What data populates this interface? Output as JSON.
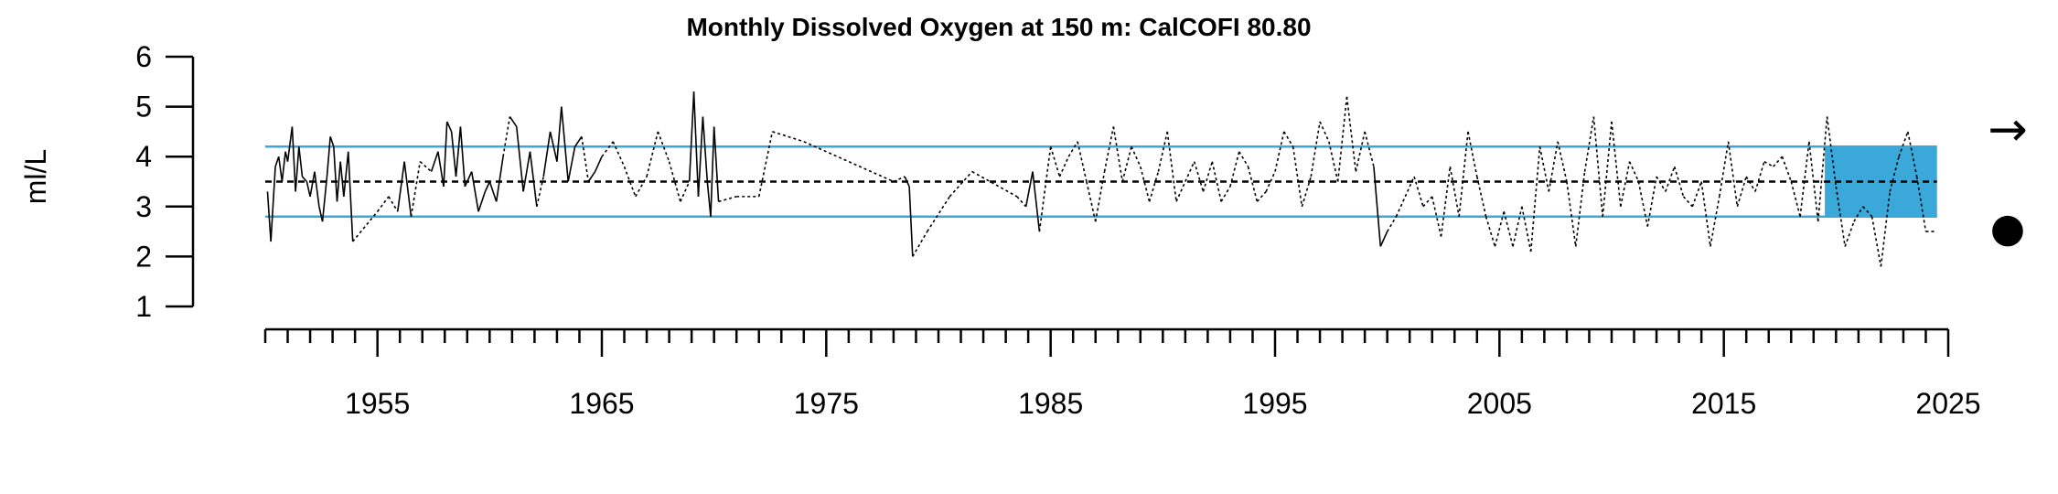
{
  "chart_data": {
    "type": "line",
    "title": "Monthly Dissolved Oxygen at 150 m: CalCOFI 80.80",
    "ylabel": "ml/L",
    "xlabel": "",
    "xlim": [
      1950,
      2025
    ],
    "ylim": [
      1,
      6
    ],
    "yticks": [
      1,
      2,
      3,
      4,
      5,
      6
    ],
    "xticks_labeled": [
      "1955",
      "1965",
      "1975",
      "1985",
      "1995",
      "2005",
      "2015",
      "2025"
    ],
    "mean": 3.5,
    "upper_sd": 4.2,
    "lower_sd": 2.8,
    "shaded_recent_period": [
      2019.5,
      2024.5
    ],
    "trend_symbol": "→",
    "status_symbol": "●",
    "colors": {
      "line": "#000000",
      "sd_lines": "#3aa8d8",
      "shade": "#3aa8d8",
      "mean_line": "#000000"
    },
    "series": [
      {
        "points": [
          [
            1950.1,
            3.3
          ],
          [
            1950.25,
            2.3
          ],
          [
            1950.45,
            3.8
          ],
          [
            1950.6,
            4.0
          ],
          [
            1950.75,
            3.5
          ],
          [
            1950.9,
            4.1
          ],
          [
            1951.0,
            3.9
          ],
          [
            1951.2,
            4.6
          ],
          [
            1951.35,
            3.3
          ],
          [
            1951.5,
            4.2
          ],
          [
            1951.65,
            3.6
          ],
          [
            1951.85,
            3.5
          ],
          [
            1952.0,
            3.2
          ],
          [
            1952.2,
            3.7
          ],
          [
            1952.4,
            3.0
          ],
          [
            1952.55,
            2.7
          ],
          [
            1952.75,
            3.6
          ],
          [
            1952.9,
            4.4
          ],
          [
            1953.05,
            4.2
          ],
          [
            1953.2,
            3.1
          ],
          [
            1953.35,
            3.9
          ],
          [
            1953.5,
            3.2
          ],
          [
            1953.7,
            4.1
          ],
          [
            1953.9,
            2.3
          ],
          [
            1955.0,
            2.9
          ],
          [
            1955.5,
            3.2
          ],
          [
            1955.9,
            2.9
          ],
          [
            1956.2,
            3.9
          ],
          [
            1956.5,
            2.8
          ],
          [
            1956.9,
            3.9
          ],
          [
            1957.4,
            3.7
          ],
          [
            1957.7,
            4.1
          ],
          [
            1957.95,
            3.4
          ],
          [
            1958.1,
            4.7
          ],
          [
            1958.3,
            4.5
          ],
          [
            1958.5,
            3.6
          ],
          [
            1958.7,
            4.6
          ],
          [
            1958.9,
            3.4
          ],
          [
            1959.2,
            3.7
          ],
          [
            1959.5,
            2.9
          ],
          [
            1959.8,
            3.3
          ],
          [
            1960.0,
            3.5
          ],
          [
            1960.3,
            3.1
          ],
          [
            1960.6,
            4.0
          ],
          [
            1960.9,
            4.8
          ],
          [
            1961.2,
            4.6
          ],
          [
            1961.5,
            3.3
          ],
          [
            1961.8,
            4.1
          ],
          [
            1962.1,
            3.0
          ],
          [
            1962.4,
            3.6
          ],
          [
            1962.7,
            4.5
          ],
          [
            1963.0,
            3.9
          ],
          [
            1963.2,
            5.0
          ],
          [
            1963.5,
            3.5
          ],
          [
            1963.8,
            4.2
          ],
          [
            1964.1,
            4.4
          ],
          [
            1964.4,
            3.5
          ],
          [
            1964.7,
            3.7
          ],
          [
            1965.0,
            4.0
          ],
          [
            1965.5,
            4.3
          ],
          [
            1966.0,
            3.8
          ],
          [
            1966.5,
            3.2
          ],
          [
            1967.0,
            3.6
          ],
          [
            1967.5,
            4.5
          ],
          [
            1968.0,
            3.9
          ],
          [
            1968.5,
            3.1
          ],
          [
            1968.9,
            3.5
          ],
          [
            1969.1,
            5.3
          ],
          [
            1969.3,
            3.2
          ],
          [
            1969.5,
            4.8
          ],
          [
            1969.7,
            3.5
          ],
          [
            1969.85,
            2.8
          ],
          [
            1970.0,
            4.6
          ],
          [
            1970.2,
            3.1
          ],
          [
            1971.0,
            3.2
          ],
          [
            1972.0,
            3.2
          ],
          [
            1972.6,
            4.5
          ],
          [
            1974.0,
            4.3
          ],
          [
            1978.0,
            3.5
          ],
          [
            1978.5,
            3.6
          ],
          [
            1978.7,
            3.4
          ],
          [
            1978.85,
            2.0
          ],
          [
            1979.5,
            2.5
          ],
          [
            1980.5,
            3.2
          ],
          [
            1981.5,
            3.7
          ],
          [
            1983.5,
            3.2
          ],
          [
            1983.9,
            3.0
          ],
          [
            1984.2,
            3.7
          ],
          [
            1984.5,
            2.5
          ],
          [
            1985.0,
            4.2
          ],
          [
            1985.4,
            3.6
          ],
          [
            1985.8,
            4.0
          ],
          [
            1986.2,
            4.3
          ],
          [
            1986.6,
            3.5
          ],
          [
            1987.0,
            2.7
          ],
          [
            1987.4,
            3.7
          ],
          [
            1987.8,
            4.6
          ],
          [
            1988.2,
            3.5
          ],
          [
            1988.6,
            4.2
          ],
          [
            1989.0,
            3.8
          ],
          [
            1989.4,
            3.1
          ],
          [
            1989.8,
            3.7
          ],
          [
            1990.2,
            4.5
          ],
          [
            1990.6,
            3.1
          ],
          [
            1991.0,
            3.5
          ],
          [
            1991.4,
            3.9
          ],
          [
            1991.8,
            3.3
          ],
          [
            1992.2,
            3.9
          ],
          [
            1992.6,
            3.1
          ],
          [
            1993.0,
            3.4
          ],
          [
            1993.4,
            4.1
          ],
          [
            1993.8,
            3.8
          ],
          [
            1994.2,
            3.1
          ],
          [
            1994.6,
            3.3
          ],
          [
            1995.0,
            3.7
          ],
          [
            1995.4,
            4.5
          ],
          [
            1995.8,
            4.2
          ],
          [
            1996.2,
            3.0
          ],
          [
            1996.6,
            3.6
          ],
          [
            1997.0,
            4.7
          ],
          [
            1997.4,
            4.3
          ],
          [
            1997.8,
            3.5
          ],
          [
            1998.2,
            5.2
          ],
          [
            1998.6,
            3.7
          ],
          [
            1999.0,
            4.5
          ],
          [
            1999.4,
            3.8
          ],
          [
            1999.7,
            2.2
          ],
          [
            2000.0,
            2.5
          ],
          [
            2000.4,
            2.8
          ],
          [
            2000.8,
            3.2
          ],
          [
            2001.2,
            3.6
          ],
          [
            2001.6,
            3.0
          ],
          [
            2002.0,
            3.2
          ],
          [
            2002.4,
            2.4
          ],
          [
            2002.8,
            3.8
          ],
          [
            2003.2,
            2.8
          ],
          [
            2003.6,
            4.5
          ],
          [
            2004.0,
            3.6
          ],
          [
            2004.4,
            2.8
          ],
          [
            2004.8,
            2.2
          ],
          [
            2005.2,
            2.9
          ],
          [
            2005.6,
            2.2
          ],
          [
            2006.0,
            3.0
          ],
          [
            2006.4,
            2.1
          ],
          [
            2006.8,
            4.2
          ],
          [
            2007.2,
            3.3
          ],
          [
            2007.6,
            4.3
          ],
          [
            2008.0,
            3.5
          ],
          [
            2008.4,
            2.2
          ],
          [
            2008.8,
            3.7
          ],
          [
            2009.2,
            4.8
          ],
          [
            2009.6,
            2.8
          ],
          [
            2010.0,
            4.7
          ],
          [
            2010.4,
            3.0
          ],
          [
            2010.8,
            3.9
          ],
          [
            2011.2,
            3.5
          ],
          [
            2011.6,
            2.6
          ],
          [
            2012.0,
            3.6
          ],
          [
            2012.4,
            3.3
          ],
          [
            2012.8,
            3.8
          ],
          [
            2013.2,
            3.2
          ],
          [
            2013.6,
            3.0
          ],
          [
            2014.0,
            3.5
          ],
          [
            2014.4,
            2.2
          ],
          [
            2014.8,
            3.2
          ],
          [
            2015.2,
            4.3
          ],
          [
            2015.6,
            3.0
          ],
          [
            2016.0,
            3.6
          ],
          [
            2016.4,
            3.3
          ],
          [
            2016.8,
            3.9
          ],
          [
            2017.2,
            3.8
          ],
          [
            2017.6,
            4.0
          ],
          [
            2018.0,
            3.5
          ],
          [
            2018.4,
            2.8
          ],
          [
            2018.8,
            4.3
          ],
          [
            2019.2,
            2.7
          ],
          [
            2019.6,
            4.8
          ],
          [
            2020.0,
            3.4
          ],
          [
            2020.4,
            2.2
          ],
          [
            2020.8,
            2.7
          ],
          [
            2021.2,
            3.0
          ],
          [
            2021.6,
            2.8
          ],
          [
            2022.0,
            1.8
          ],
          [
            2022.4,
            3.3
          ],
          [
            2022.8,
            4.0
          ],
          [
            2023.2,
            4.5
          ],
          [
            2023.6,
            3.6
          ],
          [
            2024.0,
            2.5
          ],
          [
            2024.4,
            2.5
          ]
        ]
      }
    ]
  }
}
